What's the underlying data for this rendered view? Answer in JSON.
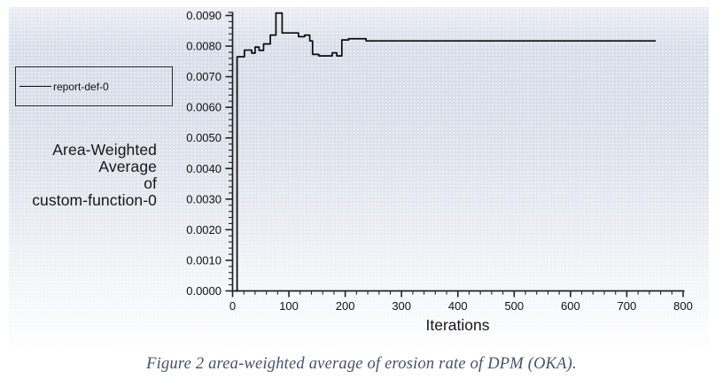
{
  "figure": {
    "caption": "Figure 2 area-weighted average of erosion rate of DPM (OKA)."
  },
  "chart": {
    "legend_label": "report-def-0",
    "y_title_lines": [
      "Area-Weighted",
      "Average",
      "of",
      "custom-function-0"
    ],
    "x_title": "Iterations"
  },
  "colors": {
    "curve": "#0a0a0a",
    "axis": "#222222",
    "tick_text": "#111111",
    "caption_text": "#46506a",
    "plot_background_mid": "#d8dee9"
  },
  "chart_data": {
    "type": "line",
    "title": "",
    "xlabel": "Iterations",
    "ylabel": "Area-Weighted Average of custom-function-0",
    "xlim": [
      0,
      800
    ],
    "ylim": [
      0.0,
      0.009
    ],
    "x_ticks": [
      0,
      100,
      200,
      300,
      400,
      500,
      600,
      700,
      800
    ],
    "y_ticks": [
      "0.0000",
      "0.0010",
      "0.0020",
      "0.0030",
      "0.0040",
      "0.0050",
      "0.0060",
      "0.0070",
      "0.0080",
      "0.0090"
    ],
    "x_minor_step": 20,
    "y_minor_step": 0.0002,
    "grid": false,
    "legend_position": "outside-left",
    "series": [
      {
        "name": "report-def-0",
        "color": "#0a0a0a",
        "interpolation": "step-after",
        "start": [
          8,
          0.0
        ],
        "steps": [
          [
            8,
            0.00765
          ],
          [
            21,
            0.00787
          ],
          [
            34,
            0.00777
          ],
          [
            40,
            0.00797
          ],
          [
            47,
            0.00786
          ],
          [
            55,
            0.00807
          ],
          [
            67,
            0.00836
          ],
          [
            77,
            0.00908
          ],
          [
            88,
            0.00843
          ],
          [
            117,
            0.00831
          ],
          [
            128,
            0.00836
          ],
          [
            137,
            0.00817
          ],
          [
            142,
            0.00773
          ],
          [
            153,
            0.00768
          ],
          [
            177,
            0.00778
          ],
          [
            185,
            0.00768
          ],
          [
            194,
            0.0082
          ],
          [
            206,
            0.00824
          ],
          [
            237,
            0.00817
          ]
        ],
        "end_x": 750
      }
    ]
  }
}
